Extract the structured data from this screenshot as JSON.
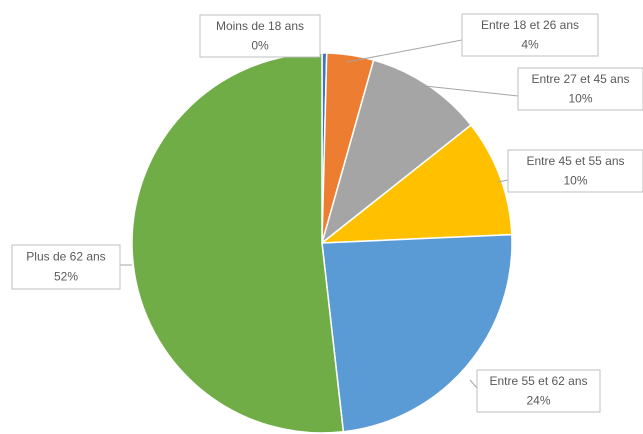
{
  "chart_data": {
    "type": "pie",
    "categories": [
      "Moins de 18 ans",
      "Entre 18 et 26 ans",
      "Entre 27 et 45 ans",
      "Entre 45 et 55 ans",
      "Entre 55 et 62 ans",
      "Plus de 62 ans"
    ],
    "values": [
      0.4,
      4,
      10,
      10,
      24,
      52
    ],
    "value_labels": [
      "0%",
      "4%",
      "10%",
      "10%",
      "24%",
      "52%"
    ],
    "colors": [
      "#4472c4",
      "#ed7d31",
      "#a5a5a5",
      "#ffc000",
      "#5b9bd5",
      "#70ad47"
    ]
  }
}
